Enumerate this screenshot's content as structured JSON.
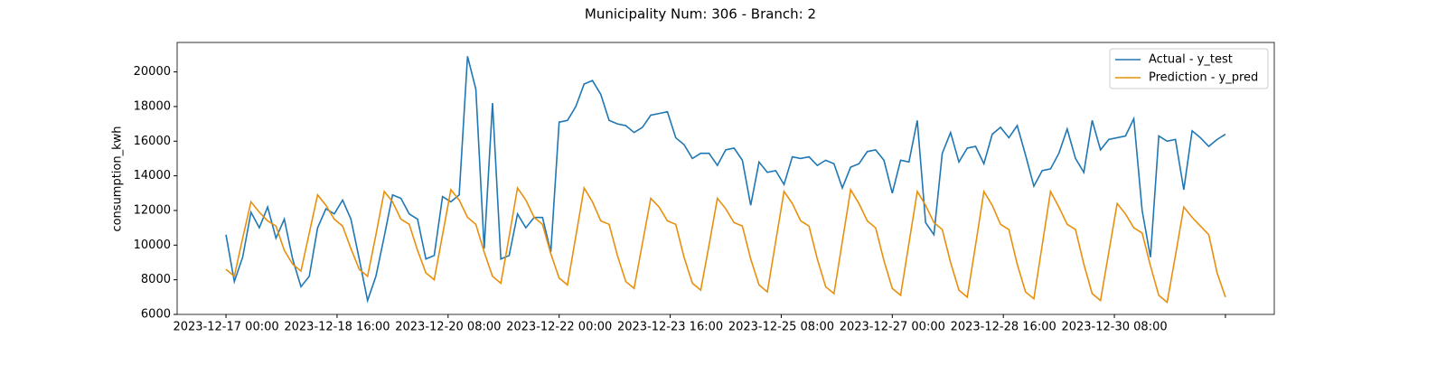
{
  "chart_data": {
    "type": "line",
    "title": "Municipality Num: 306 - Branch: 2",
    "y_label": "consumption_kwh",
    "x": [
      "2023-12-17 00:00",
      "2023-12-17 03:00",
      "2023-12-17 06:00",
      "2023-12-17 09:00",
      "2023-12-17 12:00",
      "2023-12-17 15:00",
      "2023-12-17 18:00",
      "2023-12-17 21:00",
      "2023-12-18 00:00",
      "2023-12-18 03:00",
      "2023-12-18 06:00",
      "2023-12-18 09:00",
      "2023-12-18 12:00",
      "2023-12-18 15:00",
      "2023-12-18 18:00",
      "2023-12-18 21:00",
      "2023-12-19 00:00",
      "2023-12-19 03:00",
      "2023-12-19 06:00",
      "2023-12-19 09:00",
      "2023-12-19 12:00",
      "2023-12-19 15:00",
      "2023-12-19 18:00",
      "2023-12-19 21:00",
      "2023-12-20 00:00",
      "2023-12-20 03:00",
      "2023-12-20 06:00",
      "2023-12-20 09:00",
      "2023-12-20 12:00",
      "2023-12-20 15:00",
      "2023-12-20 18:00",
      "2023-12-20 21:00",
      "2023-12-21 00:00",
      "2023-12-21 03:00",
      "2023-12-21 06:00",
      "2023-12-21 09:00",
      "2023-12-21 12:00",
      "2023-12-21 15:00",
      "2023-12-21 18:00",
      "2023-12-21 21:00",
      "2023-12-22 00:00",
      "2023-12-22 03:00",
      "2023-12-22 06:00",
      "2023-12-22 09:00",
      "2023-12-22 12:00",
      "2023-12-22 15:00",
      "2023-12-22 18:00",
      "2023-12-22 21:00",
      "2023-12-23 00:00",
      "2023-12-23 03:00",
      "2023-12-23 06:00",
      "2023-12-23 09:00",
      "2023-12-23 12:00",
      "2023-12-23 15:00",
      "2023-12-23 18:00",
      "2023-12-23 21:00",
      "2023-12-24 00:00",
      "2023-12-24 03:00",
      "2023-12-24 06:00",
      "2023-12-24 09:00",
      "2023-12-24 12:00",
      "2023-12-24 15:00",
      "2023-12-24 18:00",
      "2023-12-24 21:00",
      "2023-12-25 00:00",
      "2023-12-25 03:00",
      "2023-12-25 06:00",
      "2023-12-25 09:00",
      "2023-12-25 12:00",
      "2023-12-25 15:00",
      "2023-12-25 18:00",
      "2023-12-25 21:00",
      "2023-12-26 00:00",
      "2023-12-26 03:00",
      "2023-12-26 06:00",
      "2023-12-26 09:00",
      "2023-12-26 12:00",
      "2023-12-26 15:00",
      "2023-12-26 18:00",
      "2023-12-26 21:00",
      "2023-12-27 00:00",
      "2023-12-27 03:00",
      "2023-12-27 06:00",
      "2023-12-27 09:00",
      "2023-12-27 12:00",
      "2023-12-27 15:00",
      "2023-12-27 18:00",
      "2023-12-27 21:00",
      "2023-12-28 00:00",
      "2023-12-28 03:00",
      "2023-12-28 06:00",
      "2023-12-28 09:00",
      "2023-12-28 12:00",
      "2023-12-28 15:00",
      "2023-12-28 18:00",
      "2023-12-28 21:00",
      "2023-12-29 00:00",
      "2023-12-29 03:00",
      "2023-12-29 06:00",
      "2023-12-29 09:00",
      "2023-12-29 12:00",
      "2023-12-29 15:00",
      "2023-12-29 18:00",
      "2023-12-29 21:00",
      "2023-12-30 00:00",
      "2023-12-30 03:00",
      "2023-12-30 06:00",
      "2023-12-30 09:00",
      "2023-12-30 12:00",
      "2023-12-30 15:00",
      "2023-12-30 18:00",
      "2023-12-30 21:00",
      "2023-12-31 00:00",
      "2023-12-31 03:00",
      "2023-12-31 06:00",
      "2023-12-31 09:00",
      "2023-12-31 12:00",
      "2023-12-31 15:00",
      "2023-12-31 18:00",
      "2023-12-31 21:00",
      "2024-01-01 00:00"
    ],
    "series": [
      {
        "name": "Actual - y_test",
        "color": "#1f77b4",
        "values": [
          10600,
          7900,
          9300,
          11900,
          11000,
          12200,
          10400,
          11500,
          9200,
          7600,
          8200,
          11000,
          12100,
          11800,
          12600,
          11500,
          9200,
          6800,
          8200,
          10500,
          12900,
          12700,
          11800,
          11500,
          9200,
          9400,
          12800,
          12500,
          12900,
          20900,
          19000,
          9800,
          18200,
          9200,
          9400,
          11800,
          11000,
          11600,
          11600,
          9600,
          17100,
          17200,
          18000,
          19300,
          19500,
          18700,
          17200,
          17000,
          16900,
          16500,
          16800,
          17500,
          17600,
          17700,
          16200,
          15800,
          15000,
          15300,
          15300,
          14600,
          15500,
          15600,
          14900,
          12300,
          14800,
          14200,
          14300,
          13500,
          15100,
          15000,
          15100,
          14600,
          14900,
          14700,
          13300,
          14500,
          14700,
          15400,
          15500,
          14900,
          13000,
          14900,
          14800,
          17200,
          11300,
          10600,
          15300,
          16500,
          14800,
          15600,
          15700,
          14700,
          16400,
          16800,
          16200,
          16900,
          15200,
          13400,
          14300,
          14400,
          15300,
          16700,
          15000,
          14200,
          17200,
          15500,
          16100,
          16200,
          16300,
          17300,
          12000,
          9300,
          16300,
          16000,
          16100,
          13200,
          16600,
          16200,
          15700,
          16100,
          16400
        ]
      },
      {
        "name": "Prediction - y_pred",
        "color": "#e8900c",
        "values": [
          8600,
          8200,
          10400,
          12500,
          11900,
          11400,
          11100,
          9700,
          8900,
          8500,
          10700,
          12900,
          12300,
          11500,
          11100,
          9800,
          8600,
          8200,
          10600,
          13100,
          12500,
          11500,
          11200,
          9700,
          8400,
          8000,
          10600,
          13200,
          12600,
          11600,
          11200,
          9600,
          8200,
          7800,
          10500,
          13300,
          12600,
          11600,
          11200,
          9500,
          8100,
          7700,
          10500,
          13300,
          12500,
          11400,
          11200,
          9400,
          7900,
          7500,
          10100,
          12700,
          12200,
          11400,
          11200,
          9300,
          7800,
          7400,
          10000,
          12700,
          12100,
          11300,
          11100,
          9200,
          7700,
          7300,
          10200,
          13100,
          12400,
          11400,
          11100,
          9200,
          7600,
          7200,
          10200,
          13200,
          12400,
          11400,
          11000,
          9100,
          7500,
          7100,
          10100,
          13100,
          12300,
          11300,
          10900,
          9000,
          7400,
          7000,
          10000,
          13100,
          12300,
          11200,
          10900,
          8900,
          7300,
          6900,
          10000,
          13100,
          12200,
          11200,
          10900,
          8900,
          7200,
          6800,
          9600,
          12400,
          11800,
          11000,
          10700,
          8800,
          7100,
          6700,
          9400,
          12200,
          11600,
          11100,
          10600,
          8400,
          7000
        ]
      }
    ],
    "xlim": [
      "2023-12-16 06:24",
      "2024-01-01 17:36"
    ],
    "xticks": [
      "2023-12-17 00:00",
      "2023-12-18 16:00",
      "2023-12-20 08:00",
      "2023-12-22 00:00",
      "2023-12-23 16:00",
      "2023-12-25 08:00",
      "2023-12-27 00:00",
      "2023-12-28 16:00",
      "2023-12-30 08:00",
      {
        "value": "2024-01-01 00:00",
        "label": null
      }
    ],
    "ylim": [
      6000,
      21700
    ],
    "yticks": [
      6000,
      8000,
      10000,
      12000,
      14000,
      16000,
      18000,
      20000
    ],
    "legend": "upper right",
    "grid": false
  }
}
